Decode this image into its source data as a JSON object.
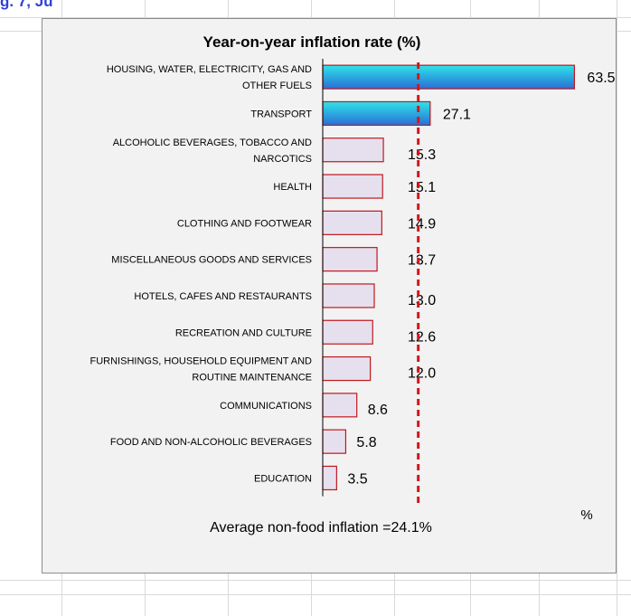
{
  "header_fragment": "g. 7, Ju",
  "colors": {
    "highlight_bar_top": "#2fe3e8",
    "highlight_bar_bottom": "#2a6fd6",
    "normal_bar_fill": "#e6e0ee",
    "bar_border": "#c0171d",
    "average_line": "#d0181c",
    "chart_background": "#f2f2f2",
    "grid_line": "#d9d9d9"
  },
  "chart_data": {
    "type": "bar",
    "orientation": "horizontal",
    "title": "Year-on-year inflation rate (%)",
    "unit_label": "%",
    "categories": [
      [
        "HOUSING, WATER, ELECTRICITY, GAS AND",
        "OTHER FUELS"
      ],
      [
        "TRANSPORT"
      ],
      [
        "ALCOHOLIC BEVERAGES, TOBACCO AND",
        "NARCOTICS"
      ],
      [
        "HEALTH"
      ],
      [
        "CLOTHING AND FOOTWEAR"
      ],
      [
        "MISCELLANEOUS GOODS AND SERVICES"
      ],
      [
        "HOTELS, CAFES AND RESTAURANTS"
      ],
      [
        "RECREATION AND CULTURE"
      ],
      [
        "FURNISHINGS, HOUSEHOLD EQUIPMENT AND",
        "ROUTINE MAINTENANCE"
      ],
      [
        "COMMUNICATIONS"
      ],
      [
        "FOOD AND NON-ALCOHOLIC BEVERAGES"
      ],
      [
        "EDUCATION"
      ]
    ],
    "value_labels": [
      "63.5",
      "27.1",
      "15.3",
      "15.1",
      "14.9",
      "13.7",
      "13.0",
      "12.6",
      "12.0",
      "8.6",
      "5.8",
      "3.5"
    ],
    "values": [
      63.5,
      27.1,
      15.3,
      15.1,
      14.9,
      13.7,
      13.0,
      12.6,
      12.0,
      8.6,
      5.8,
      3.5
    ],
    "highlighted": [
      true,
      true,
      false,
      false,
      false,
      false,
      false,
      false,
      false,
      false,
      false,
      false
    ],
    "xlim": [
      0,
      65
    ],
    "average": {
      "value": 24.1,
      "label": "Average non-food inflation =24.1%"
    },
    "grid": false,
    "legend": "none"
  }
}
